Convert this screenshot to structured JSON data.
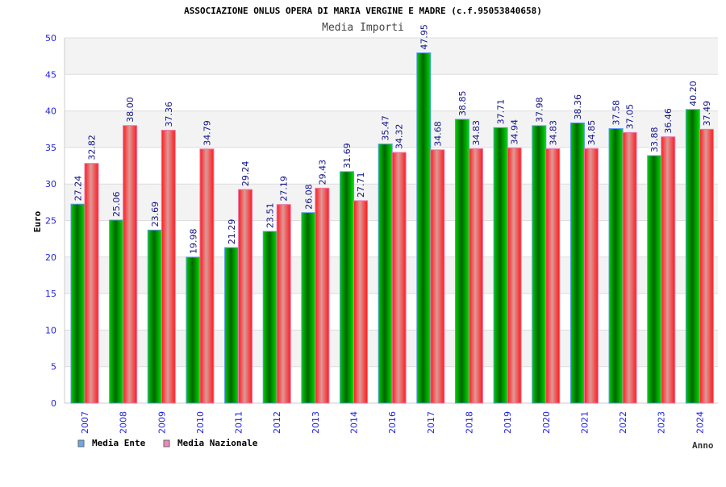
{
  "chart_data": {
    "type": "bar",
    "title": "ASSOCIAZIONE ONLUS OPERA DI MARIA VERGINE E MADRE (c.f.95053840658)",
    "subtitle": "Media Importi",
    "xlabel": "Anno",
    "ylabel": "Euro",
    "ylim": [
      0,
      50
    ],
    "yticks": [
      "0",
      "5",
      "10",
      "15",
      "20",
      "25",
      "30",
      "35",
      "40",
      "45",
      "50"
    ],
    "grid": true,
    "legend_position": "bottom-left",
    "categories": [
      "2007",
      "2008",
      "2009",
      "2010",
      "2011",
      "2012",
      "2013",
      "2014",
      "2016",
      "2017",
      "2018",
      "2019",
      "2020",
      "2021",
      "2022",
      "2023",
      "2024"
    ],
    "series": [
      {
        "name": "Media Ente",
        "color": "#00aa00",
        "legend_color": "#66aaee",
        "values": [
          27.24,
          25.06,
          23.69,
          19.98,
          21.29,
          23.51,
          26.08,
          31.69,
          35.47,
          47.95,
          38.85,
          37.71,
          37.98,
          38.36,
          37.58,
          33.88,
          40.2
        ],
        "labels": [
          "27.24",
          "25.06",
          "23.69",
          "19.98",
          "21.29",
          "23.51",
          "26.08",
          "31.69",
          "35.47",
          "47.95",
          "38.85",
          "37.71",
          "37.98",
          "38.36",
          "37.58",
          "33.88",
          "40.20"
        ]
      },
      {
        "name": "Media Nazionale",
        "color": "#ff2020",
        "legend_color": "#ee88bb",
        "values": [
          32.82,
          38.0,
          37.36,
          34.79,
          29.24,
          27.19,
          29.43,
          27.71,
          34.32,
          34.68,
          34.83,
          34.94,
          34.83,
          34.85,
          37.05,
          36.46,
          37.49
        ],
        "labels": [
          "32.82",
          "38.00",
          "37.36",
          "34.79",
          "29.24",
          "27.19",
          "29.43",
          "27.71",
          "34.32",
          "34.68",
          "34.83",
          "34.94",
          "34.83",
          "34.85",
          "37.05",
          "36.46",
          "37.49"
        ]
      }
    ]
  }
}
